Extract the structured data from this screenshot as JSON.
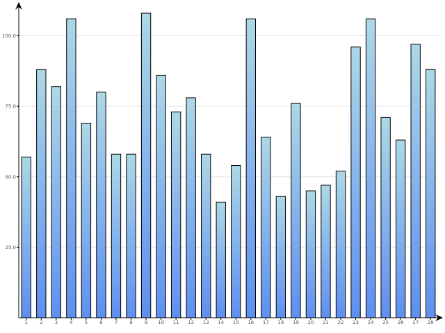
{
  "chart_data": {
    "type": "bar",
    "categories": [
      "1",
      "2",
      "3",
      "4",
      "5",
      "6",
      "7",
      "8",
      "9",
      "10",
      "11",
      "12",
      "13",
      "14",
      "15",
      "16",
      "17",
      "18",
      "19",
      "20",
      "21",
      "22",
      "23",
      "24",
      "25",
      "26",
      "27",
      "28"
    ],
    "values": [
      57,
      88,
      82,
      106,
      69,
      80,
      58,
      58,
      108,
      86,
      73,
      78,
      58,
      41,
      54,
      106,
      64,
      43,
      76,
      45,
      47,
      52,
      96,
      106,
      71,
      63,
      97,
      88
    ],
    "ylim": [
      0,
      108
    ],
    "yticks": [
      {
        "value": 25,
        "label": "25.0"
      },
      {
        "value": 50,
        "label": "50.0"
      },
      {
        "value": 75,
        "label": "75.0"
      },
      {
        "value": 100,
        "label": "100.0"
      }
    ],
    "grid": true,
    "colors": {
      "bar_top": "#add8e6",
      "bar_bottom": "#5f8ff0",
      "bar_stroke": "#000000",
      "grid": "#e6e6e6",
      "axis": "#000000"
    }
  }
}
